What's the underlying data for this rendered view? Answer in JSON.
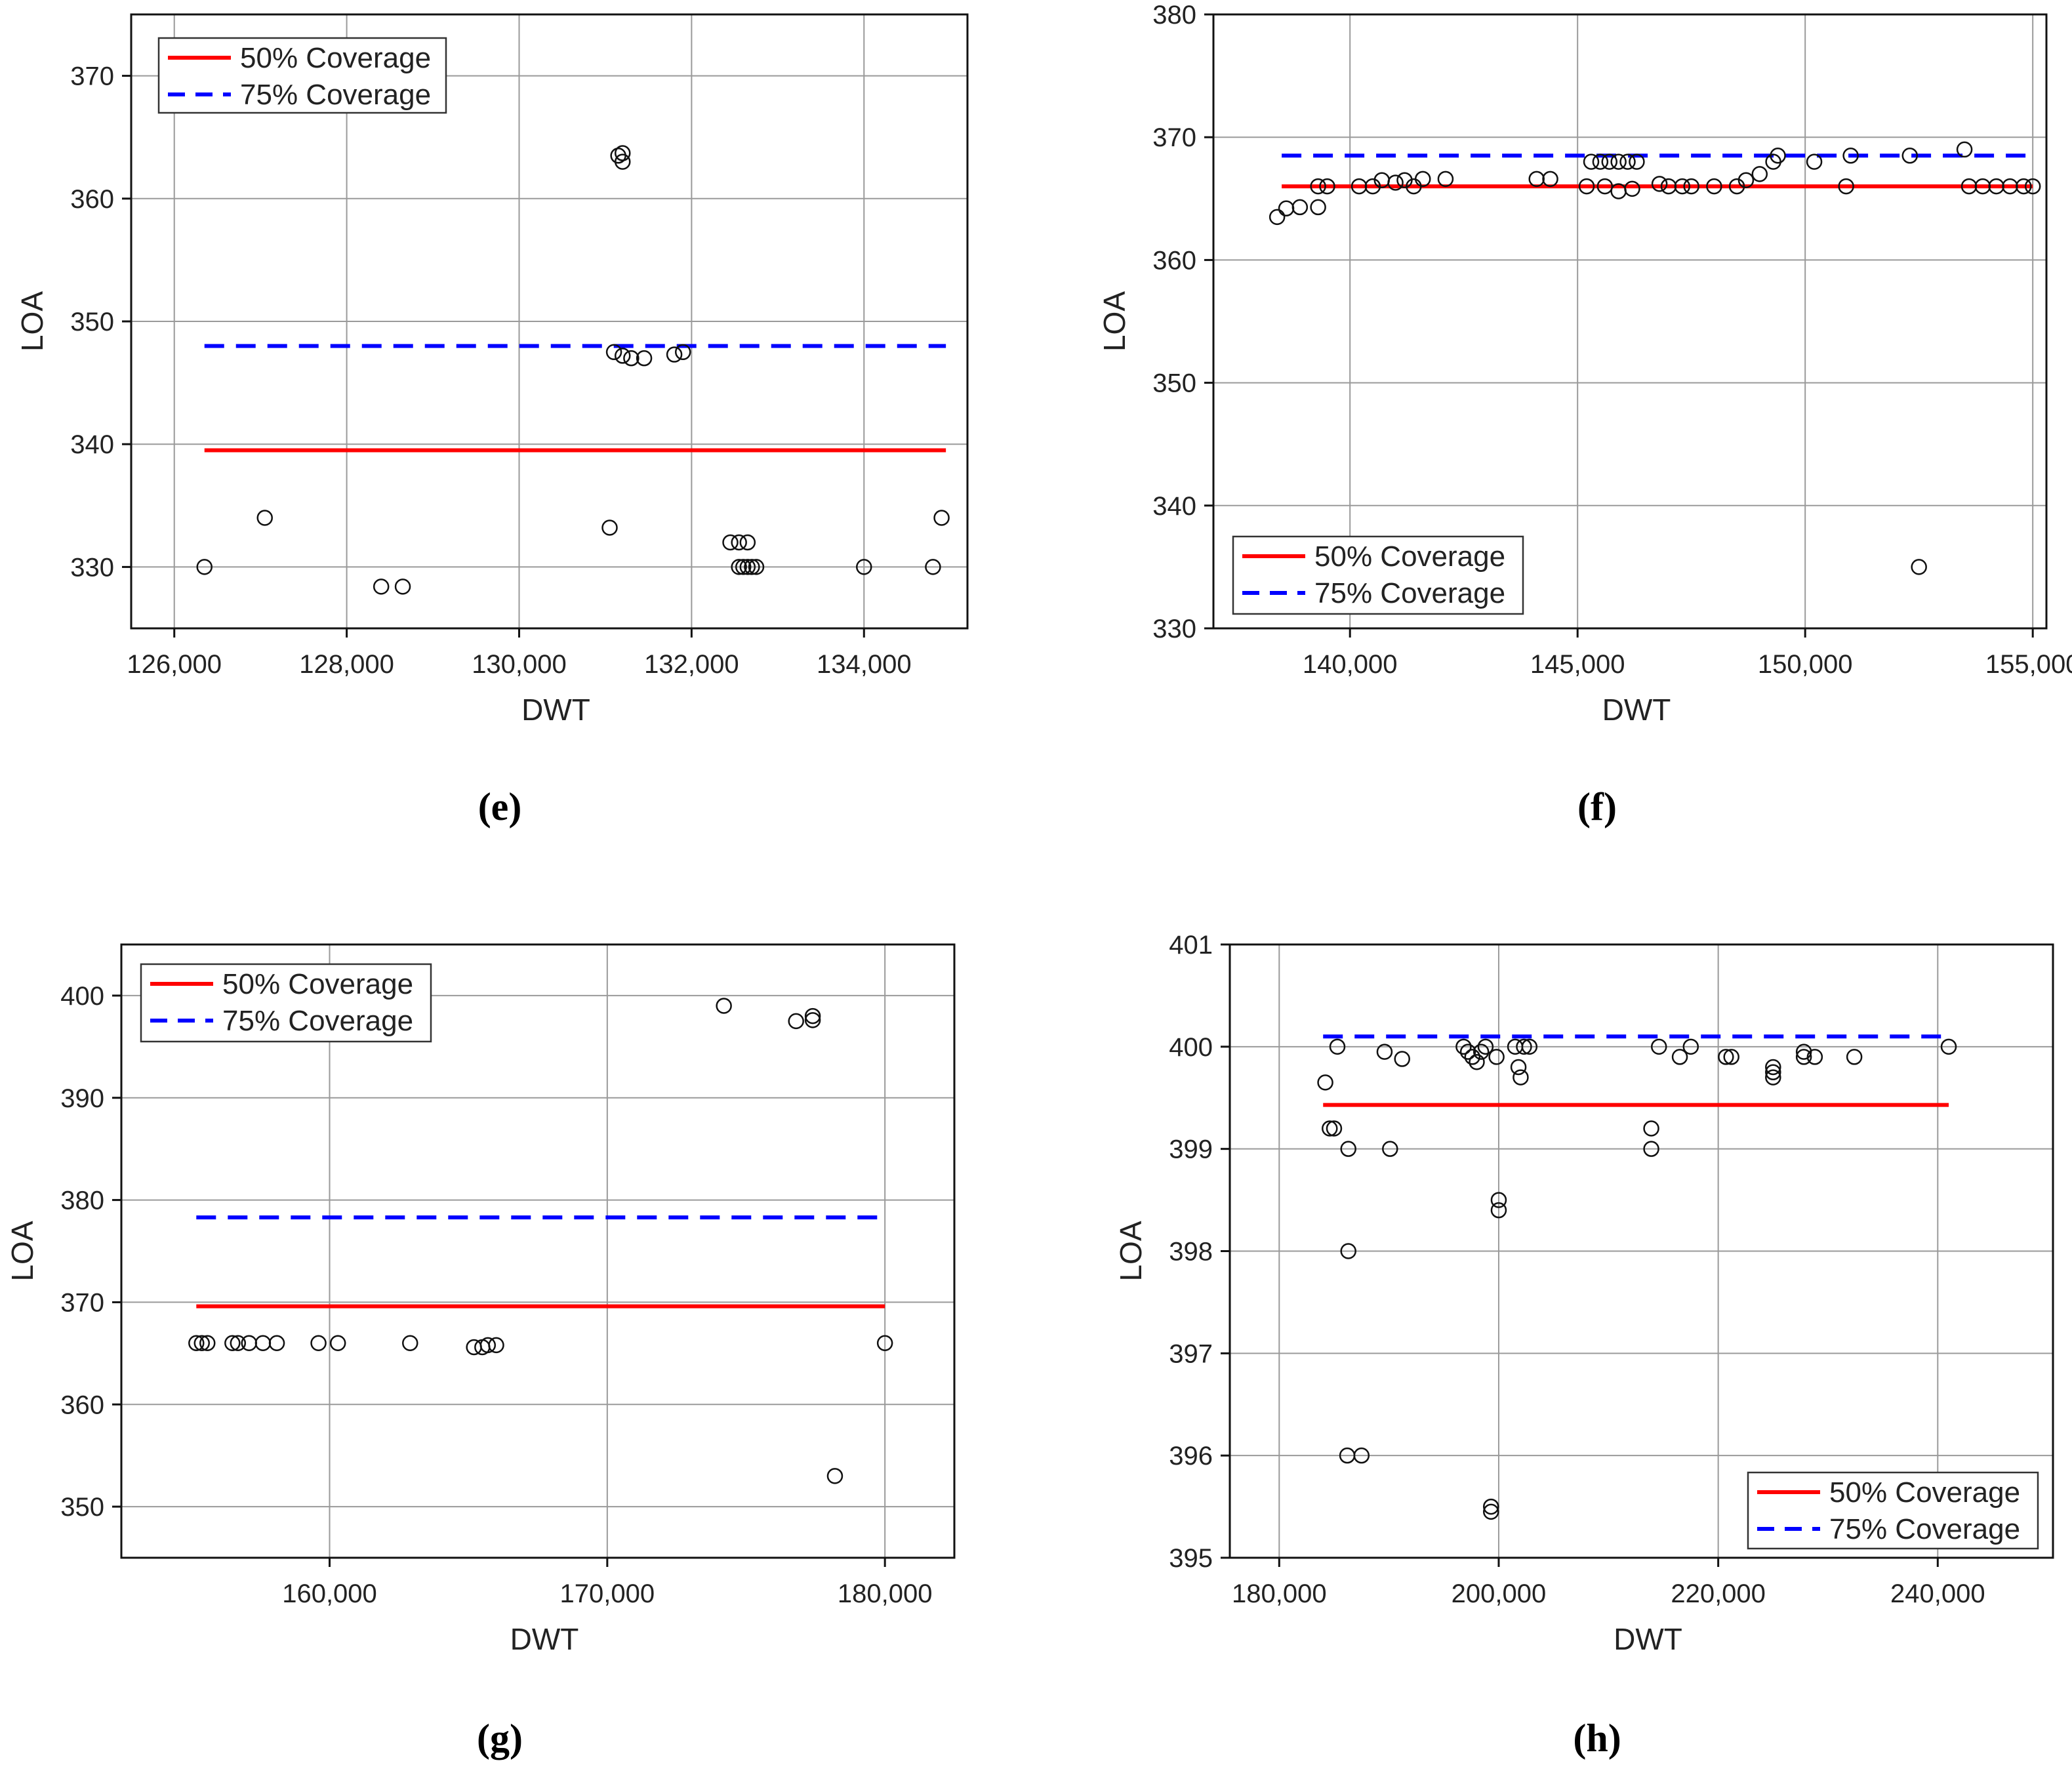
{
  "chart_data": [
    {
      "panel": "e",
      "type": "scatter",
      "xlabel": "DWT",
      "ylabel": "LOA",
      "xlim": [
        125500,
        135200
      ],
      "ylim": [
        325,
        375
      ],
      "xticks": [
        126000,
        128000,
        130000,
        132000,
        134000
      ],
      "yticks": [
        330,
        340,
        350,
        360,
        370
      ],
      "xtick_labels": [
        "126,000",
        "128,000",
        "130,000",
        "132,000",
        "134,000"
      ],
      "ytick_labels": [
        "330",
        "340",
        "350",
        "360",
        "370"
      ],
      "legend_position": "top-left",
      "lines": [
        {
          "name": "50% Coverage",
          "value": 339.5,
          "x_range": [
            126350,
            134950
          ],
          "color": "#ff0000",
          "style": "solid"
        },
        {
          "name": "75% Coverage",
          "value": 348.0,
          "x_range": [
            126350,
            134950
          ],
          "color": "#0000ff",
          "style": "dashed"
        }
      ],
      "points": [
        [
          126350,
          330
        ],
        [
          127050,
          334
        ],
        [
          128400,
          328.4
        ],
        [
          128650,
          328.4
        ],
        [
          131050,
          333.2
        ],
        [
          131150,
          363.5
        ],
        [
          131200,
          363.0
        ],
        [
          131200,
          363.7
        ],
        [
          131100,
          347.5
        ],
        [
          131200,
          347.2
        ],
        [
          131300,
          347.0
        ],
        [
          131450,
          347.0
        ],
        [
          131800,
          347.3
        ],
        [
          131900,
          347.5
        ],
        [
          132450,
          332
        ],
        [
          132550,
          332
        ],
        [
          132650,
          332
        ],
        [
          132550,
          330
        ],
        [
          132600,
          330
        ],
        [
          132650,
          330
        ],
        [
          132700,
          330
        ],
        [
          132750,
          330
        ],
        [
          134000,
          330
        ],
        [
          134800,
          330
        ],
        [
          134900,
          334
        ]
      ]
    },
    {
      "panel": "f",
      "type": "scatter",
      "xlabel": "DWT",
      "ylabel": "LOA",
      "xlim": [
        137000,
        155300
      ],
      "ylim": [
        330,
        380
      ],
      "xticks": [
        140000,
        145000,
        150000,
        155000
      ],
      "yticks": [
        330,
        340,
        350,
        360,
        370,
        380
      ],
      "xtick_labels": [
        "140,000",
        "145,000",
        "150,000",
        "155,000"
      ],
      "ytick_labels": [
        "330",
        "340",
        "350",
        "360",
        "370",
        "380"
      ],
      "legend_position": "bottom-left",
      "lines": [
        {
          "name": "50% Coverage",
          "value": 366.0,
          "x_range": [
            138500,
            155000
          ],
          "color": "#ff0000",
          "style": "solid"
        },
        {
          "name": "75% Coverage",
          "value": 368.5,
          "x_range": [
            138500,
            155000
          ],
          "color": "#0000ff",
          "style": "dashed"
        }
      ],
      "points": [
        [
          138400,
          363.5
        ],
        [
          138600,
          364.2
        ],
        [
          138900,
          364.3
        ],
        [
          139300,
          364.3
        ],
        [
          139300,
          366.0
        ],
        [
          139500,
          366.0
        ],
        [
          140200,
          366.0
        ],
        [
          140500,
          366.0
        ],
        [
          140700,
          366.5
        ],
        [
          141000,
          366.3
        ],
        [
          141200,
          366.5
        ],
        [
          141400,
          366.0
        ],
        [
          141600,
          366.6
        ],
        [
          142100,
          366.6
        ],
        [
          144100,
          366.6
        ],
        [
          144400,
          366.6
        ],
        [
          145200,
          366.0
        ],
        [
          145600,
          366.0
        ],
        [
          145900,
          365.6
        ],
        [
          146200,
          365.8
        ],
        [
          145300,
          368.0
        ],
        [
          145500,
          368.0
        ],
        [
          145700,
          368.0
        ],
        [
          145900,
          368.0
        ],
        [
          146100,
          368.0
        ],
        [
          146300,
          368.0
        ],
        [
          146800,
          366.2
        ],
        [
          147000,
          366.0
        ],
        [
          147300,
          366.0
        ],
        [
          147500,
          366.0
        ],
        [
          148000,
          366.0
        ],
        [
          148500,
          366.0
        ],
        [
          148700,
          366.5
        ],
        [
          149000,
          367.0
        ],
        [
          149300,
          368.0
        ],
        [
          149400,
          368.5
        ],
        [
          150200,
          368.0
        ],
        [
          150900,
          366.0
        ],
        [
          151000,
          368.5
        ],
        [
          152300,
          368.5
        ],
        [
          152500,
          335.0
        ],
        [
          153500,
          369.0
        ],
        [
          153600,
          366.0
        ],
        [
          153900,
          366.0
        ],
        [
          154200,
          366.0
        ],
        [
          154500,
          366.0
        ],
        [
          154800,
          366.0
        ],
        [
          155000,
          366.0
        ]
      ]
    },
    {
      "panel": "g",
      "type": "scatter",
      "xlabel": "DWT",
      "ylabel": "LOA",
      "xlim": [
        152500,
        182500
      ],
      "ylim": [
        345,
        405
      ],
      "xticks": [
        160000,
        170000,
        180000
      ],
      "yticks": [
        350,
        360,
        370,
        380,
        390,
        400
      ],
      "xtick_labels": [
        "160,000",
        "170,000",
        "180,000"
      ],
      "ytick_labels": [
        "350",
        "360",
        "370",
        "380",
        "390",
        "400"
      ],
      "legend_position": "top-left",
      "lines": [
        {
          "name": "50% Coverage",
          "value": 369.6,
          "x_range": [
            155200,
            180000
          ],
          "color": "#ff0000",
          "style": "solid"
        },
        {
          "name": "75% Coverage",
          "value": 378.3,
          "x_range": [
            155200,
            180000
          ],
          "color": "#0000ff",
          "style": "dashed"
        }
      ],
      "points": [
        [
          155200,
          366.0
        ],
        [
          155400,
          366.0
        ],
        [
          155600,
          366.0
        ],
        [
          156500,
          366.0
        ],
        [
          156700,
          366.0
        ],
        [
          157100,
          366.0
        ],
        [
          157600,
          366.0
        ],
        [
          158100,
          366.0
        ],
        [
          159600,
          366.0
        ],
        [
          160300,
          366.0
        ],
        [
          162900,
          366.0
        ],
        [
          165200,
          365.6
        ],
        [
          165500,
          365.6
        ],
        [
          165700,
          365.8
        ],
        [
          166000,
          365.8
        ],
        [
          174200,
          399.0
        ],
        [
          176800,
          397.5
        ],
        [
          177400,
          397.6
        ],
        [
          177400,
          398.0
        ],
        [
          178200,
          353.0
        ],
        [
          180000,
          366.0
        ]
      ]
    },
    {
      "panel": "h",
      "type": "scatter",
      "xlabel": "DWT",
      "ylabel": "LOA",
      "xlim": [
        175500,
        250500
      ],
      "ylim": [
        395,
        401
      ],
      "xticks": [
        180000,
        200000,
        220000,
        240000
      ],
      "yticks": [
        395,
        396,
        397,
        398,
        399,
        400,
        401
      ],
      "xtick_labels": [
        "180,000",
        "200,000",
        "220,000",
        "240,000"
      ],
      "ytick_labels": [
        "395",
        "396",
        "397",
        "398",
        "399",
        "400",
        "401"
      ],
      "legend_position": "bottom-right",
      "lines": [
        {
          "name": "50% Coverage",
          "value": 399.43,
          "x_range": [
            184000,
            241000
          ],
          "color": "#ff0000",
          "style": "solid"
        },
        {
          "name": "75% Coverage",
          "value": 400.1,
          "x_range": [
            184000,
            241000
          ],
          "color": "#0000ff",
          "style": "dashed"
        }
      ],
      "points": [
        [
          184200,
          399.65
        ],
        [
          184600,
          399.2
        ],
        [
          185000,
          399.2
        ],
        [
          185300,
          400.0
        ],
        [
          186300,
          399.0
        ],
        [
          186300,
          398.0
        ],
        [
          186200,
          396.0
        ],
        [
          187500,
          396.0
        ],
        [
          189600,
          399.95
        ],
        [
          190100,
          399.0
        ],
        [
          191200,
          399.88
        ],
        [
          196800,
          400.0
        ],
        [
          197200,
          399.95
        ],
        [
          197600,
          399.9
        ],
        [
          198000,
          399.85
        ],
        [
          198400,
          399.95
        ],
        [
          198800,
          400.0
        ],
        [
          199300,
          395.5
        ],
        [
          199300,
          395.45
        ],
        [
          199800,
          399.9
        ],
        [
          200000,
          398.5
        ],
        [
          200000,
          398.4
        ],
        [
          201500,
          400.0
        ],
        [
          201800,
          399.8
        ],
        [
          202000,
          399.7
        ],
        [
          202300,
          400.0
        ],
        [
          202800,
          400.0
        ],
        [
          213900,
          399.2
        ],
        [
          213900,
          399.0
        ],
        [
          214600,
          400.0
        ],
        [
          216500,
          399.9
        ],
        [
          217500,
          400.0
        ],
        [
          220700,
          399.9
        ],
        [
          221200,
          399.9
        ],
        [
          225000,
          399.8
        ],
        [
          225000,
          399.75
        ],
        [
          225000,
          399.7
        ],
        [
          227800,
          399.95
        ],
        [
          227800,
          399.9
        ],
        [
          228800,
          399.9
        ],
        [
          232400,
          399.9
        ],
        [
          241000,
          400.0
        ]
      ]
    }
  ]
}
